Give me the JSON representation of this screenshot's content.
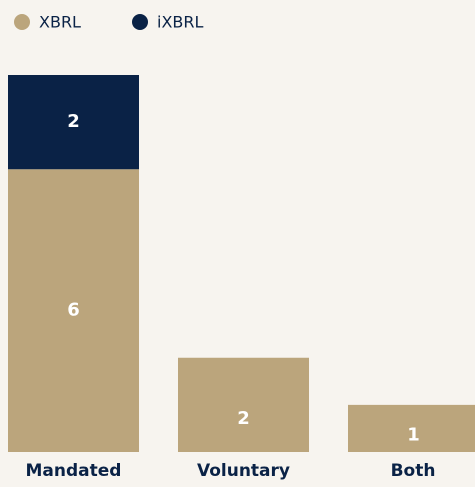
{
  "chart_data": {
    "type": "stacked-bar",
    "categories": [
      "Mandated",
      "Voluntary",
      "Both"
    ],
    "series": [
      {
        "name": "XBRL",
        "color": "#bba57c",
        "values": [
          6,
          2,
          1
        ]
      },
      {
        "name": "iXBRL",
        "color": "#0a2246",
        "values": [
          2,
          null,
          null
        ]
      }
    ],
    "legend": "top-left"
  }
}
